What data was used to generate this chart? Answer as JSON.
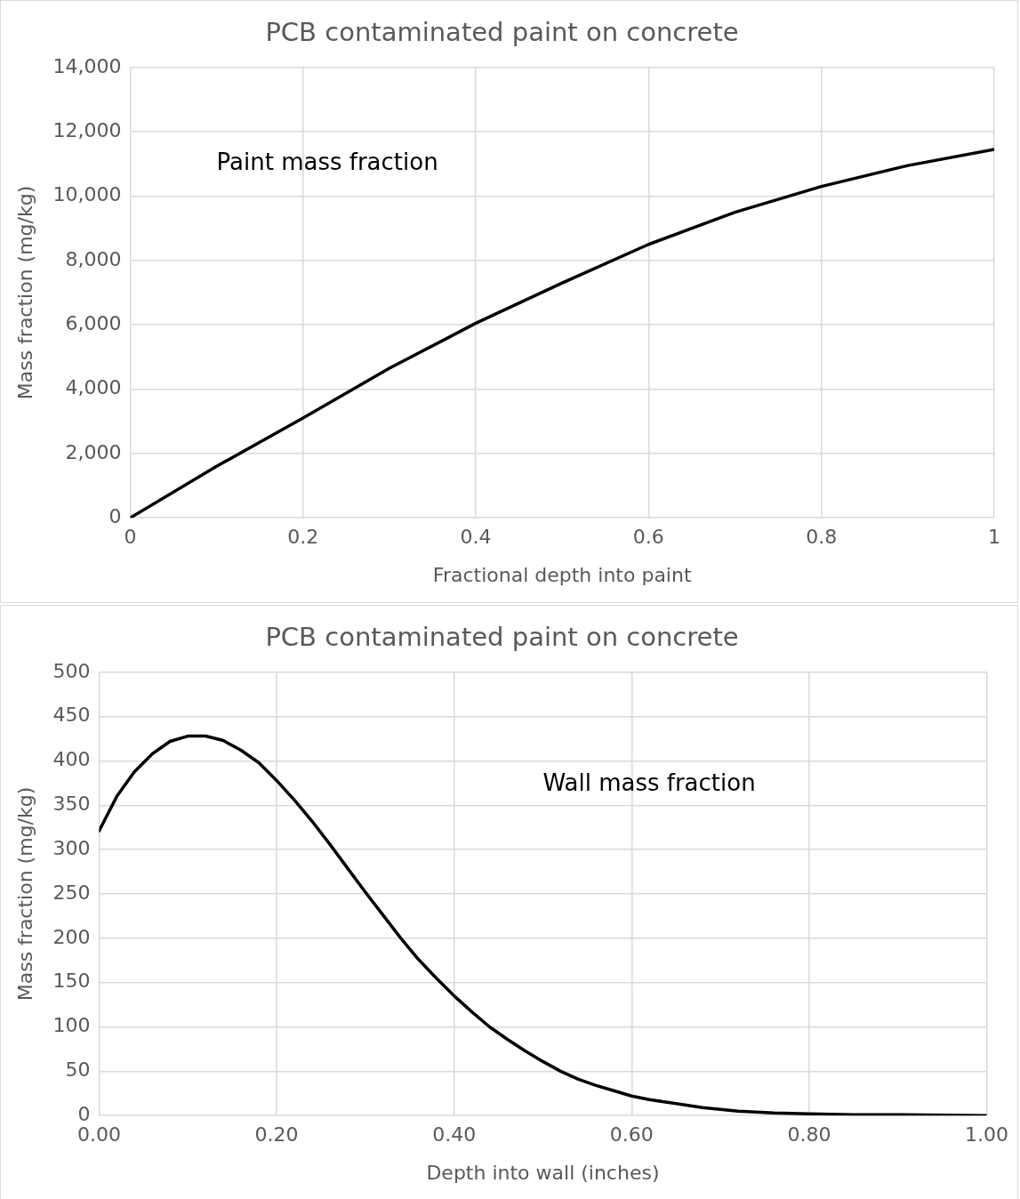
{
  "chart_data": [
    {
      "type": "line",
      "title": "PCB contaminated paint on concrete",
      "xlabel": "Fractional depth into paint",
      "ylabel": "Mass fraction (mg/kg)",
      "annotations": [
        "Paint mass fraction"
      ],
      "x": [
        0,
        0.1,
        0.2,
        0.3,
        0.4,
        0.5,
        0.6,
        0.7,
        0.8,
        0.9,
        1
      ],
      "series": [
        {
          "color": "#000000",
          "values": [
            0,
            1600,
            3100,
            4650,
            6050,
            7300,
            8500,
            9500,
            10300,
            10950,
            11450
          ]
        }
      ],
      "xlim": [
        0,
        1
      ],
      "xticks": [
        0,
        0.2,
        0.4,
        0.6,
        0.8,
        1
      ],
      "ylim": [
        0,
        14000
      ],
      "yticks": [
        0,
        {
          "value": 2000,
          "label": "2,000"
        },
        {
          "value": 4000,
          "label": "4,000"
        },
        {
          "value": 6000,
          "label": "6,000"
        },
        {
          "value": 8000,
          "label": "8,000"
        },
        {
          "value": 10000,
          "label": "10,000"
        },
        {
          "value": 12000,
          "label": "12,000"
        },
        {
          "value": 14000,
          "label": "14,000"
        }
      ],
      "grid": true,
      "legend": false,
      "marker": "none",
      "line_style": "solid"
    },
    {
      "type": "line",
      "title": "PCB contaminated paint on concrete",
      "xlabel": "Depth into wall (inches)",
      "ylabel": "Mass fraction (mg/kg)",
      "annotations": [
        "Wall mass fraction"
      ],
      "x": [
        0,
        0.02,
        0.04,
        0.06,
        0.08,
        0.1,
        0.12,
        0.14,
        0.16,
        0.18,
        0.2,
        0.22,
        0.24,
        0.26,
        0.28,
        0.3,
        0.32,
        0.34,
        0.36,
        0.38,
        0.4,
        0.42,
        0.44,
        0.46,
        0.48,
        0.5,
        0.52,
        0.54,
        0.56,
        0.58,
        0.6,
        0.62,
        0.64,
        0.66,
        0.68,
        0.7,
        0.72,
        0.76,
        0.8,
        0.85,
        0.9,
        1
      ],
      "series": [
        {
          "color": "#000000",
          "values": [
            321,
            360,
            388,
            408,
            422,
            428,
            428,
            423,
            412,
            398,
            378,
            356,
            332,
            306,
            279,
            252,
            226,
            200,
            176,
            155,
            135,
            117,
            100,
            86,
            73,
            61,
            50,
            41,
            34,
            28,
            22,
            18,
            15,
            12,
            9,
            7,
            5,
            3,
            2,
            1,
            1,
            0
          ]
        }
      ],
      "xlim": [
        0,
        1
      ],
      "xticks": [
        {
          "value": 0,
          "label": "0.00"
        },
        {
          "value": 0.2,
          "label": "0.20"
        },
        {
          "value": 0.4,
          "label": "0.40"
        },
        {
          "value": 0.6,
          "label": "0.60"
        },
        {
          "value": 0.8,
          "label": "0.80"
        },
        {
          "value": 1,
          "label": "1.00"
        }
      ],
      "ylim": [
        0,
        500
      ],
      "yticks": [
        0,
        50,
        100,
        150,
        200,
        250,
        300,
        350,
        400,
        450,
        500
      ],
      "grid": true,
      "legend": false,
      "marker": "none",
      "line_style": "solid"
    }
  ]
}
